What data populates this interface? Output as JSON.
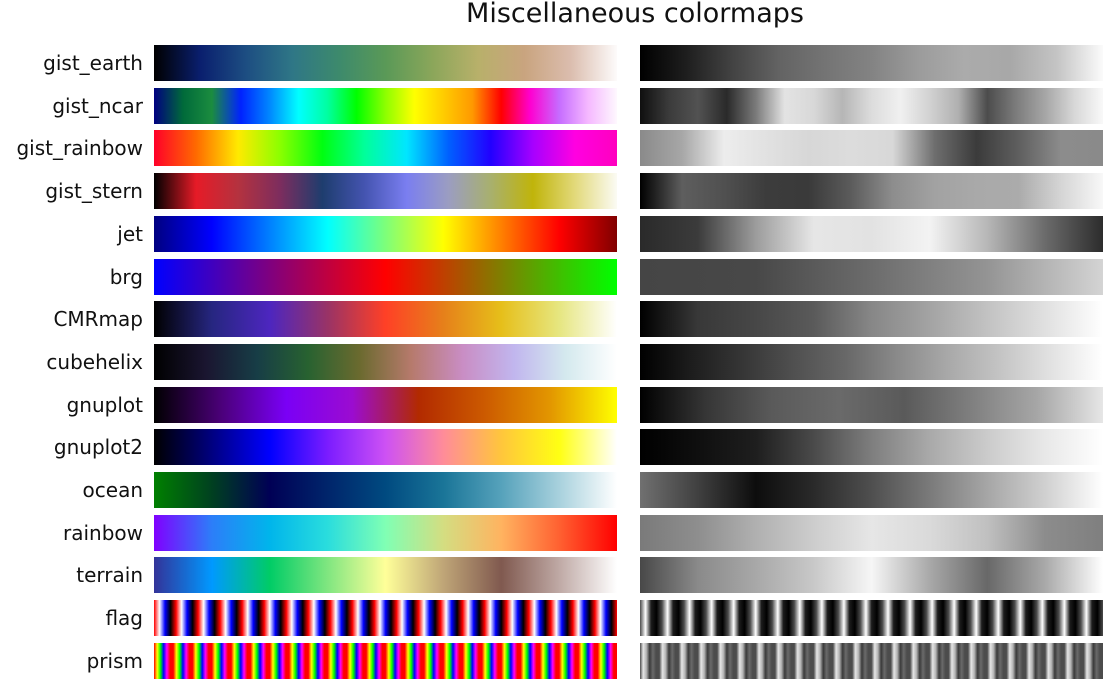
{
  "chart_data": {
    "type": "colormap-strips",
    "title": "Miscellaneous colormaps",
    "colormaps": [
      {
        "name": "gist_earth",
        "stops": [
          "#000000",
          "#0a1f6e",
          "#1d4e82",
          "#2f7786",
          "#3d8a6c",
          "#5a9957",
          "#8aa65a",
          "#b8b06a",
          "#c9a47f",
          "#dbbdae",
          "#fdfbfb"
        ],
        "gray": [
          "#000000",
          "#1e1e1e",
          "#434343",
          "#636363",
          "#747474",
          "#838383",
          "#9b9b9b",
          "#ababab",
          "#a8a8a8",
          "#c4c4c4",
          "#fbfbfb"
        ]
      },
      {
        "name": "gist_ncar",
        "stops": [
          "#000080",
          "#006a3a",
          "#1b8c3f",
          "#0022ff",
          "#0088ff",
          "#00ffff",
          "#00ffa0",
          "#00ff00",
          "#8dff00",
          "#ffff00",
          "#ffcc00",
          "#ff9900",
          "#ff0000",
          "#ff00d0",
          "#c66cff",
          "#f5b8ff",
          "#fef8fe"
        ],
        "gray": [
          "#0f0f0f",
          "#3b3b3b",
          "#525252",
          "#2a2a2a",
          "#7a7a7a",
          "#e3e3e3",
          "#d8d8d8",
          "#b6b6b6",
          "#dcdcdc",
          "#f0f0f0",
          "#d2d2d2",
          "#b0b0b0",
          "#4c4c4c",
          "#7c7c7c",
          "#a6a6a6",
          "#d7d7d7",
          "#f9f9f9"
        ]
      },
      {
        "name": "gist_rainbow",
        "stops": [
          "#ff0029",
          "#ff6a00",
          "#ffea00",
          "#8aff00",
          "#00ff10",
          "#00ff9a",
          "#00e6ff",
          "#0060ff",
          "#2200ff",
          "#a600ff",
          "#ff00e1",
          "#ff00bf"
        ],
        "gray": [
          "#8a8a8a",
          "#a7a7a7",
          "#ededed",
          "#e1e1e1",
          "#d7d7d7",
          "#dcdcdc",
          "#d8d8d8",
          "#6e6e6e",
          "#3b3b3b",
          "#5f5f5f",
          "#8c8c8c",
          "#8a8a8a"
        ]
      },
      {
        "name": "gist_stern",
        "stops": [
          "#000000",
          "#e61b27",
          "#b4323f",
          "#7c2d5e",
          "#1e3d6e",
          "#4454b0",
          "#7a7ef0",
          "#9b9dc1",
          "#a8b06e",
          "#c0b40a",
          "#e2d97a",
          "#fbfbf4"
        ],
        "gray": [
          "#000000",
          "#5e5e5e",
          "#505050",
          "#3c3c3c",
          "#3a3a3a",
          "#5b5b5b",
          "#8d8d8d",
          "#a2a2a2",
          "#a9a9a9",
          "#ababab",
          "#d5d5d5",
          "#f8f8f8"
        ]
      },
      {
        "name": "jet",
        "stops": [
          "#000080",
          "#0000ff",
          "#0080ff",
          "#00ffff",
          "#7dff7a",
          "#ffff00",
          "#ff8000",
          "#ff0000",
          "#800000"
        ],
        "gray": [
          "#2a2a2a",
          "#3b3b3b",
          "#9c9c9c",
          "#e6e6e6",
          "#e2e2e2",
          "#f3f3f3",
          "#b7b7b7",
          "#6b6b6b",
          "#2c2c2c"
        ]
      },
      {
        "name": "brg",
        "stops": [
          "#0000ff",
          "#7f007f",
          "#ff0000",
          "#7f7f00",
          "#00ff00"
        ],
        "gray": [
          "#454545",
          "#484848",
          "#6c6c6c",
          "#949494",
          "#d4d4d4"
        ]
      },
      {
        "name": "CMRmap",
        "stops": [
          "#000000",
          "#262680",
          "#4d26bf",
          "#993366",
          "#ff4026",
          "#e6801a",
          "#e6bf1a",
          "#e6e680",
          "#ffffff"
        ],
        "gray": [
          "#000000",
          "#383838",
          "#474747",
          "#5a5a5a",
          "#878787",
          "#a3a3a3",
          "#c2c2c2",
          "#e0e0e0",
          "#ffffff"
        ]
      },
      {
        "name": "cubehelix",
        "stops": [
          "#000000",
          "#1a1530",
          "#173d46",
          "#286230",
          "#6b6a2f",
          "#b67a6c",
          "#c98dc4",
          "#c1b6ee",
          "#d4e9ee",
          "#ffffff"
        ],
        "gray": [
          "#000000",
          "#1d1d1d",
          "#363636",
          "#505050",
          "#686868",
          "#8a8a8a",
          "#a9a9a9",
          "#c4c4c4",
          "#e2e2e2",
          "#ffffff"
        ]
      },
      {
        "name": "gnuplot",
        "stops": [
          "#000000",
          "#4a0077",
          "#7a00f6",
          "#9b0cd0",
          "#b22a00",
          "#cc5a00",
          "#e39700",
          "#ffff00"
        ],
        "gray": [
          "#000000",
          "#363636",
          "#5a5a5a",
          "#6a6a6a",
          "#5a5a5a",
          "#7f7f7f",
          "#a6a6a6",
          "#e6e6e6"
        ]
      },
      {
        "name": "gnuplot2",
        "stops": [
          "#000000",
          "#000080",
          "#0000ff",
          "#7b1cff",
          "#cd51f4",
          "#ff8c99",
          "#ffc63c",
          "#ffff13",
          "#ffffff"
        ],
        "gray": [
          "#000000",
          "#0f0f0f",
          "#1e1e1e",
          "#4a4a4a",
          "#7e7e7e",
          "#a9a9a9",
          "#cbcbcb",
          "#e8e8e8",
          "#ffffff"
        ]
      },
      {
        "name": "ocean",
        "stops": [
          "#008000",
          "#004020",
          "#000055",
          "#00256b",
          "#004a80",
          "#1a7598",
          "#56a2bb",
          "#a8d1dd",
          "#ffffff"
        ],
        "gray": [
          "#707070",
          "#404040",
          "#0d0d0d",
          "#2a2a2a",
          "#4f4f4f",
          "#7a7a7a",
          "#a6a6a6",
          "#d0d0d0",
          "#ffffff"
        ]
      },
      {
        "name": "rainbow",
        "stops": [
          "#8000ff",
          "#2c7ef9",
          "#00b5eb",
          "#2adddd",
          "#80ffb4",
          "#d4dd81",
          "#ffb360",
          "#ff6131",
          "#ff0000"
        ],
        "gray": [
          "#7a7a7a",
          "#8e8e8e",
          "#b0b0b0",
          "#cdcdcd",
          "#e6e6e6",
          "#dadada",
          "#c0c0c0",
          "#8c8c8c",
          "#7f7f7f"
        ]
      },
      {
        "name": "terrain",
        "stops": [
          "#333399",
          "#0099ff",
          "#00cc66",
          "#80e680",
          "#ffff99",
          "#bfa577",
          "#80594f",
          "#bfa9a5",
          "#ffffff"
        ],
        "gray": [
          "#484848",
          "#8a8a8a",
          "#a8a8a8",
          "#c8c8c8",
          "#f6f6f6",
          "#a9a9a9",
          "#686868",
          "#a9a9a9",
          "#ffffff"
        ]
      },
      {
        "name": "flag",
        "stops": [
          "#ff0000",
          "#ffffff",
          "#0000ff",
          "#000000"
        ],
        "gray": [
          "#4c4c4c",
          "#ffffff",
          "#1c1c1c",
          "#000000"
        ],
        "periodic": 21
      },
      {
        "name": "prism",
        "stops": [
          "#ff0000",
          "#ffff00",
          "#00ff00",
          "#0000ff",
          "#ff00ff",
          "#ff0000"
        ],
        "gray": [
          "#4c4c4c",
          "#e6e6e6",
          "#b4b4b4",
          "#3a3a3a",
          "#6a6a6a",
          "#4c4c4c"
        ],
        "periodic": 24
      }
    ]
  }
}
